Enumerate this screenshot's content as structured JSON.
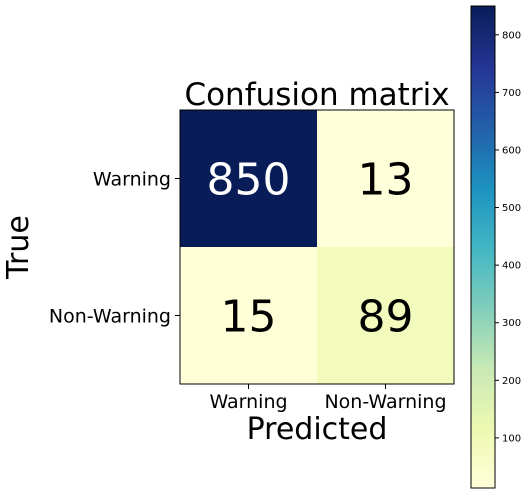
{
  "chart_data": {
    "type": "heatmap",
    "title": "Confusion matrix",
    "xlabel": "Predicted",
    "ylabel": "True",
    "x_categories": [
      "Warning",
      "Non-Warning"
    ],
    "y_categories": [
      "Warning",
      "Non-Warning"
    ],
    "values": [
      [
        850,
        13
      ],
      [
        15,
        89
      ]
    ],
    "colormap": "YlGnBu",
    "colorbar": {
      "min": 13,
      "max": 850,
      "ticks": [
        100,
        200,
        300,
        400,
        500,
        600,
        700,
        800
      ],
      "tick_labels": [
        "100",
        "200",
        "300",
        "400",
        "500",
        "600",
        "700",
        "800"
      ]
    }
  }
}
